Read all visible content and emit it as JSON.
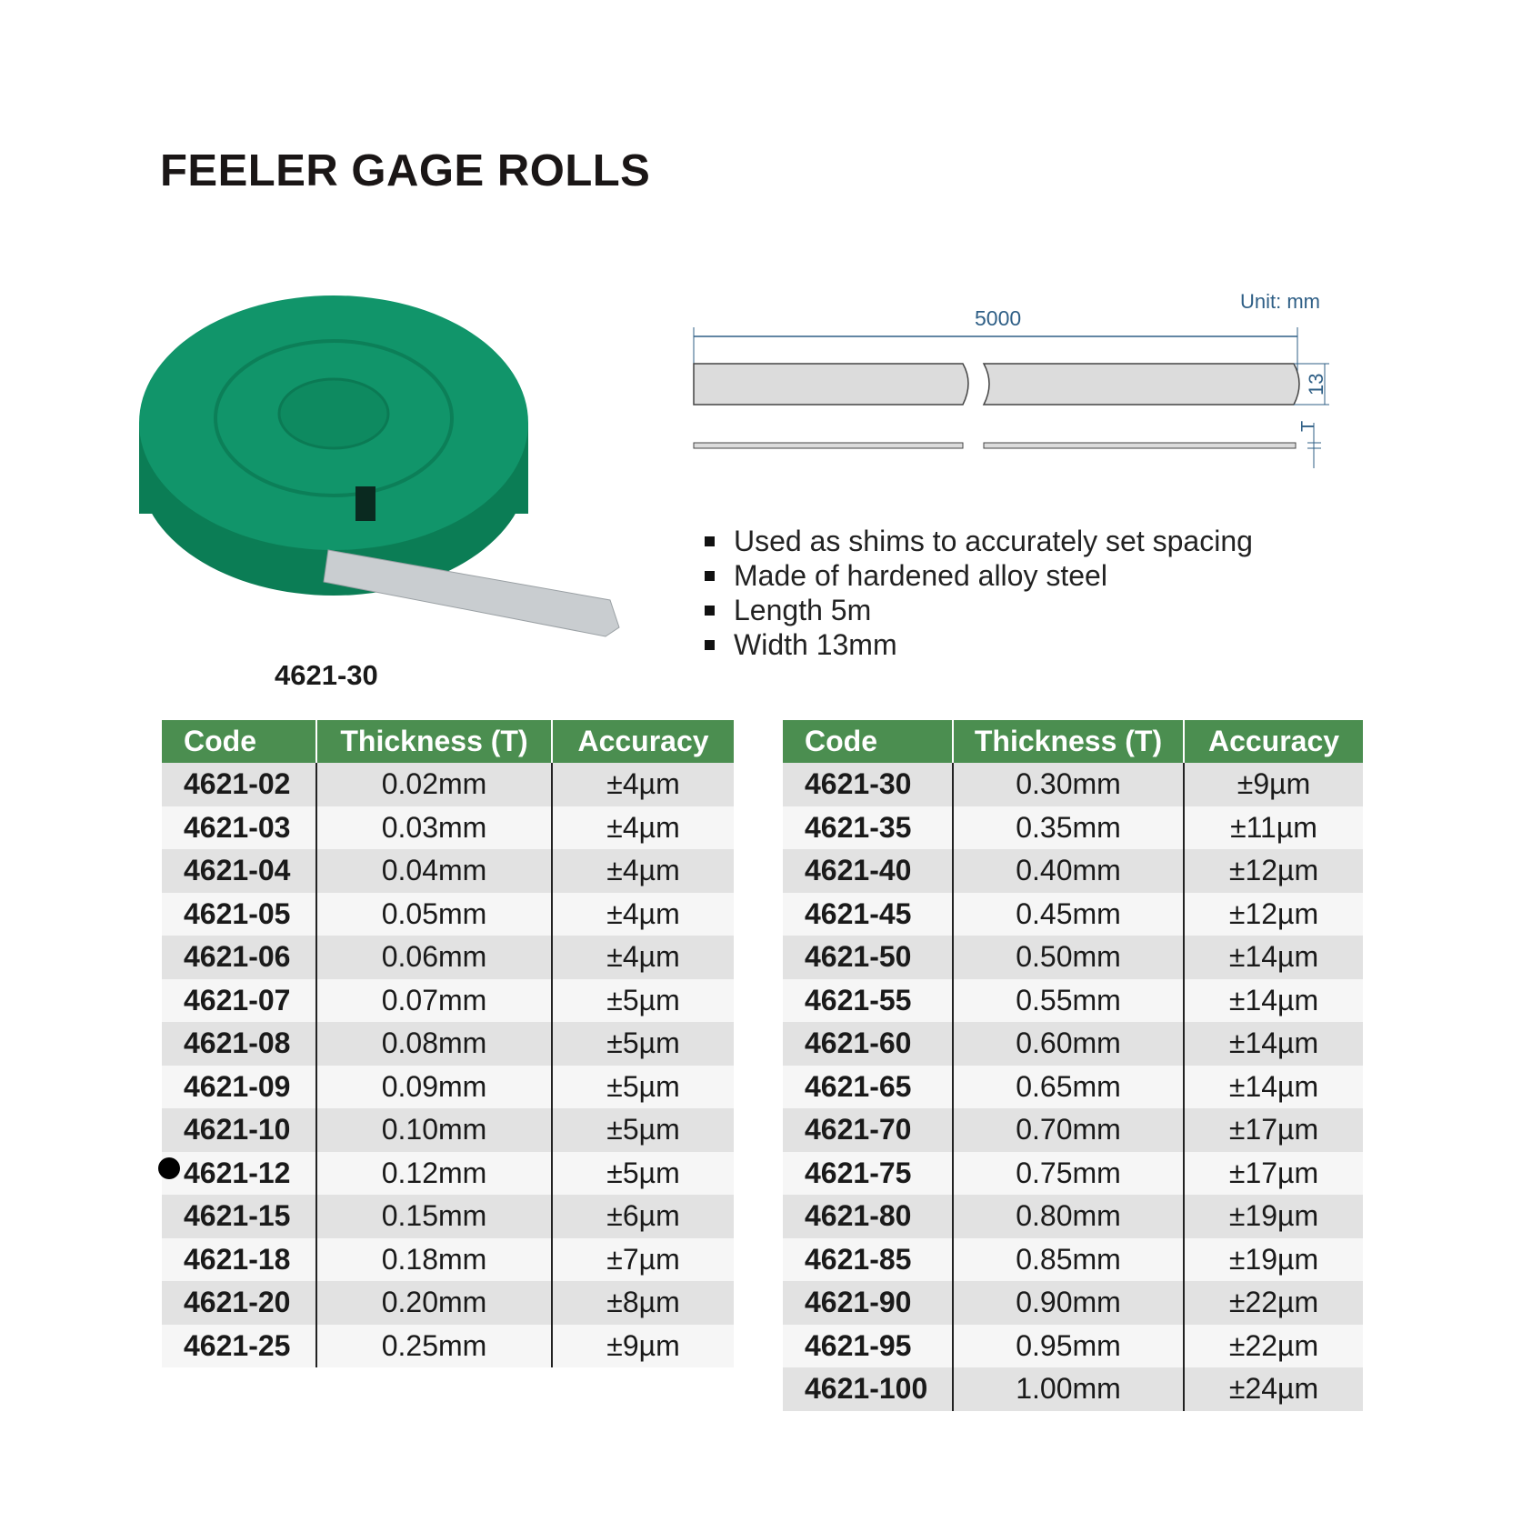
{
  "title": "FEELER GAGE ROLLS",
  "product": {
    "caption": "4621-30",
    "case_color": "#0f8a5f"
  },
  "diagram": {
    "unit": "Unit: mm",
    "length": "5000",
    "width": "13",
    "thickness": "T",
    "line_color": "#2f5f86"
  },
  "features": [
    "Used as shims to accurately set spacing",
    "Made of hardened alloy steel",
    "Length 5m",
    "Width 13mm"
  ],
  "table_headers": [
    "Code",
    "Thickness (T)",
    "Accuracy"
  ],
  "accent_color": "#4b8e50",
  "left_table": [
    [
      "4621-02",
      "0.02mm",
      "±4µm"
    ],
    [
      "4621-03",
      "0.03mm",
      "±4µm"
    ],
    [
      "4621-04",
      "0.04mm",
      "±4µm"
    ],
    [
      "4621-05",
      "0.05mm",
      "±4µm"
    ],
    [
      "4621-06",
      "0.06mm",
      "±4µm"
    ],
    [
      "4621-07",
      "0.07mm",
      "±5µm"
    ],
    [
      "4621-08",
      "0.08mm",
      "±5µm"
    ],
    [
      "4621-09",
      "0.09mm",
      "±5µm"
    ],
    [
      "4621-10",
      "0.10mm",
      "±5µm"
    ],
    [
      "4621-12",
      "0.12mm",
      "±5µm"
    ],
    [
      "4621-15",
      "0.15mm",
      "±6µm"
    ],
    [
      "4621-18",
      "0.18mm",
      "±7µm"
    ],
    [
      "4621-20",
      "0.20mm",
      "±8µm"
    ],
    [
      "4621-25",
      "0.25mm",
      "±9µm"
    ]
  ],
  "right_table": [
    [
      "4621-30",
      "0.30mm",
      "±9µm"
    ],
    [
      "4621-35",
      "0.35mm",
      "±11µm"
    ],
    [
      "4621-40",
      "0.40mm",
      "±12µm"
    ],
    [
      "4621-45",
      "0.45mm",
      "±12µm"
    ],
    [
      "4621-50",
      "0.50mm",
      "±14µm"
    ],
    [
      "4621-55",
      "0.55mm",
      "±14µm"
    ],
    [
      "4621-60",
      "0.60mm",
      "±14µm"
    ],
    [
      "4621-65",
      "0.65mm",
      "±14µm"
    ],
    [
      "4621-70",
      "0.70mm",
      "±17µm"
    ],
    [
      "4621-75",
      "0.75mm",
      "±17µm"
    ],
    [
      "4621-80",
      "0.80mm",
      "±19µm"
    ],
    [
      "4621-85",
      "0.85mm",
      "±19µm"
    ],
    [
      "4621-90",
      "0.90mm",
      "±22µm"
    ],
    [
      "4621-95",
      "0.95mm",
      "±22µm"
    ],
    [
      "4621-100",
      "1.00mm",
      "±24µm"
    ]
  ],
  "marked_row": "4621-12"
}
